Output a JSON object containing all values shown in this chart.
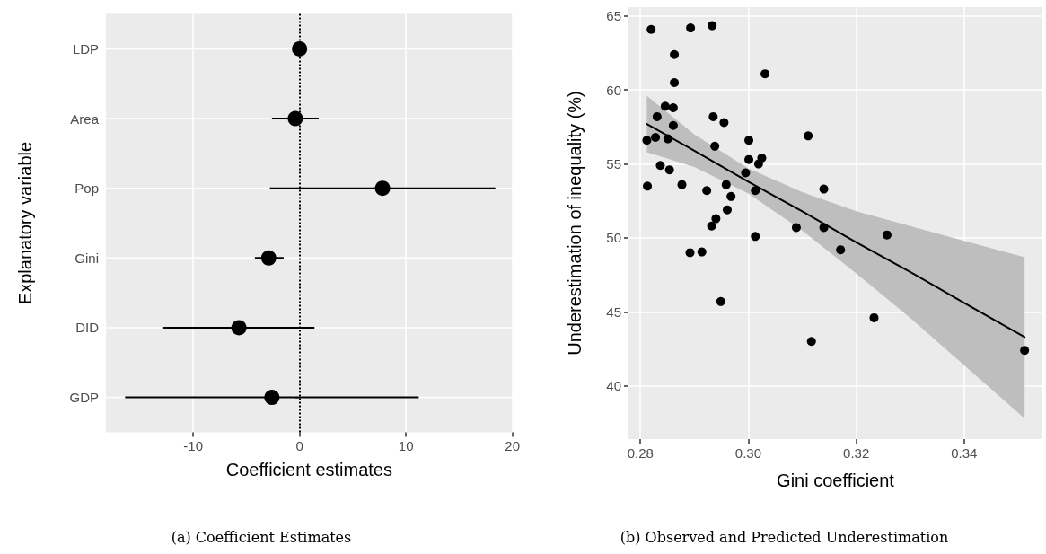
{
  "chart_data": [
    {
      "type": "scatter",
      "orientation": "horizontal",
      "title": "(a) Coefficient Estimates",
      "xlabel": "Coefficient estimates",
      "ylabel": "Explanatory variable",
      "categories": [
        "LDP",
        "Area",
        "Pop",
        "Gini",
        "DID",
        "GDP"
      ],
      "values": [
        0,
        -0.4,
        7.8,
        -2.9,
        -5.7,
        -2.6
      ],
      "errors": [
        null,
        [
          -2.6,
          1.8
        ],
        [
          -2.8,
          18.4
        ],
        [
          -4.2,
          -1.5
        ],
        [
          -12.9,
          1.4
        ],
        [
          -16.4,
          11.2
        ]
      ],
      "color": "#000000",
      "marker": "circle",
      "xlim": [
        -18.2,
        20
      ],
      "xticks": [
        -10,
        0,
        10,
        20
      ],
      "ref_lines": [
        {
          "axis": "x",
          "value": 0,
          "line_style": "dotted",
          "color": "#000000"
        }
      ],
      "grid": true
    },
    {
      "type": "scatter",
      "title": "(b) Observed and Predicted Underestimation",
      "xlabel": "Gini coefficient",
      "ylabel": "Underestimation of inequality (%)",
      "series": [
        {
          "type": "scatter",
          "color": "#000000",
          "marker": "circle",
          "x": [
            0.282,
            0.2893,
            0.2933,
            0.2863,
            0.2863,
            0.3031,
            0.2846,
            0.2861,
            0.2831,
            0.2935,
            0.2955,
            0.2861,
            0.2812,
            0.2828,
            0.2851,
            0.2938,
            0.3001,
            0.3111,
            0.2837,
            0.2854,
            0.2813,
            0.2877,
            0.2923,
            0.2959,
            0.2968,
            0.2961,
            0.294,
            0.2932,
            0.2995,
            0.3001,
            0.3019,
            0.3025,
            0.3013,
            0.3013,
            0.3089,
            0.2892,
            0.2914,
            0.2949,
            0.314,
            0.314,
            0.3257,
            0.3171,
            0.3233,
            0.3117,
            0.3512
          ],
          "values": [
            64.1,
            64.2,
            64.35,
            62.4,
            60.5,
            61.1,
            58.9,
            58.8,
            58.2,
            58.2,
            57.8,
            57.6,
            56.6,
            56.8,
            56.7,
            56.2,
            56.6,
            56.9,
            54.9,
            54.6,
            53.5,
            53.6,
            53.2,
            53.6,
            52.8,
            51.9,
            51.3,
            50.8,
            54.4,
            55.3,
            55.0,
            55.4,
            53.2,
            50.1,
            50.7,
            49.0,
            49.05,
            45.7,
            53.3,
            50.7,
            50.2,
            49.2,
            44.6,
            43.0,
            42.4
          ]
        },
        {
          "type": "line",
          "color": "#000000",
          "x": [
            0.2812,
            0.29,
            0.3,
            0.31,
            0.32,
            0.33,
            0.34,
            0.3512
          ],
          "values": [
            57.7,
            55.9,
            53.8,
            51.8,
            49.7,
            47.7,
            45.6,
            43.3
          ],
          "lower": [
            55.8,
            54.8,
            53.0,
            50.5,
            47.6,
            44.6,
            41.4,
            37.8
          ],
          "upper": [
            59.6,
            57.0,
            54.7,
            53.1,
            51.8,
            50.8,
            49.8,
            48.7
          ]
        }
      ],
      "xlim": [
        0.2778,
        0.3545
      ],
      "xticks": [
        0.28,
        {
          "value": 0.3,
          "label": "0.30"
        },
        0.32,
        0.34
      ],
      "ylim": [
        36.4,
        65.6
      ],
      "yticks": [
        40,
        45,
        50,
        55,
        60,
        65
      ],
      "grid": true
    }
  ]
}
